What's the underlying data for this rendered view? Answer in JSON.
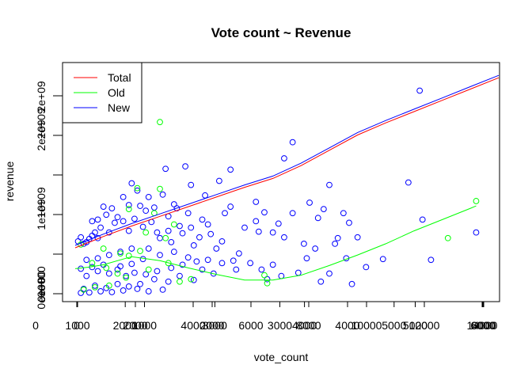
{
  "chart_data": {
    "type": "scatter",
    "title": "Vote count ~ Revenue",
    "xlabel": "vote_count",
    "ylabel": "revenue",
    "xlim": [
      0,
      15000
    ],
    "ylim": [
      0,
      2800000000
    ],
    "x_tick_labels_a": [
      "1000",
      "2000",
      "4000",
      "6000",
      "8000",
      "10000",
      "12000",
      "14000"
    ],
    "x_tick_labels_b": [
      "0",
      "2000",
      "3000",
      "4000",
      "5000",
      "6000"
    ],
    "x_tick_labels_c": [
      "0",
      "1000",
      "2000",
      "3000",
      "4000",
      "5000",
      "6000"
    ],
    "y_tick_labels_a": [
      "0e+00",
      "1e+09",
      "2e+09"
    ],
    "y_tick_labels_b": [
      "0e+00",
      "1e+09",
      "2e+09"
    ],
    "y_tick_labels_c": [
      "0e+00",
      "2e+09"
    ],
    "legend": {
      "position": "top-left",
      "entries": [
        {
          "label": "Total",
          "color": "#ff0000"
        },
        {
          "label": "Old",
          "color": "#00ff00"
        },
        {
          "label": "New",
          "color": "#0000ff"
        }
      ]
    },
    "colors": {
      "old": "#00ff00",
      "new": "#0000ff"
    },
    "series": [
      {
        "color": "#0000ff",
        "points": [
          [
            12200,
            2520000000
          ],
          [
            7700,
            1880000000
          ],
          [
            7400,
            1680000000
          ],
          [
            9000,
            1350000000
          ],
          [
            11800,
            1380000000
          ],
          [
            12300,
            920000000
          ],
          [
            14200,
            760000000
          ],
          [
            10900,
            430000000
          ],
          [
            10000,
            700000000
          ],
          [
            9300,
            690000000
          ],
          [
            9600,
            440000000
          ],
          [
            9200,
            620000000
          ],
          [
            9500,
            1000000000
          ],
          [
            9700,
            880000000
          ],
          [
            8800,
            1050000000
          ],
          [
            8300,
            1130000000
          ],
          [
            8600,
            940000000
          ],
          [
            8500,
            560000000
          ],
          [
            8100,
            620000000
          ],
          [
            8200,
            440000000
          ],
          [
            8700,
            150000000
          ],
          [
            9000,
            250000000
          ],
          [
            9800,
            120000000
          ],
          [
            7400,
            700000000
          ],
          [
            7200,
            870000000
          ],
          [
            7700,
            1000000000
          ],
          [
            7000,
            760000000
          ],
          [
            7000,
            360000000
          ],
          [
            6400,
            900000000
          ],
          [
            6500,
            770000000
          ],
          [
            6700,
            1010000000
          ],
          [
            6400,
            1140000000
          ],
          [
            5500,
            1080000000
          ],
          [
            6000,
            820000000
          ],
          [
            5800,
            500000000
          ],
          [
            5600,
            410000000
          ],
          [
            5200,
            650000000
          ],
          [
            5000,
            560000000
          ],
          [
            4800,
            740000000
          ],
          [
            4500,
            920000000
          ],
          [
            4700,
            860000000
          ],
          [
            4400,
            700000000
          ],
          [
            4200,
            600000000
          ],
          [
            4000,
            1000000000
          ],
          [
            3600,
            1060000000
          ],
          [
            3300,
            960000000
          ],
          [
            3100,
            1230000000
          ],
          [
            2800,
            1070000000
          ],
          [
            4600,
            1220000000
          ],
          [
            4100,
            1350000000
          ],
          [
            5100,
            1400000000
          ],
          [
            5500,
            1540000000
          ],
          [
            5300,
            1000000000
          ],
          [
            3800,
            750000000
          ],
          [
            3400,
            640000000
          ],
          [
            3000,
            690000000
          ],
          [
            2700,
            890000000
          ],
          [
            2900,
            760000000
          ],
          [
            2500,
            1030000000
          ],
          [
            2300,
            1090000000
          ],
          [
            2100,
            930000000
          ],
          [
            1900,
            780000000
          ],
          [
            2600,
            1200000000
          ],
          [
            3500,
            1110000000
          ],
          [
            2200,
            1280000000
          ],
          [
            2000,
            1370000000
          ],
          [
            3900,
            1580000000
          ],
          [
            3200,
            1550000000
          ],
          [
            4100,
            820000000
          ],
          [
            3700,
            840000000
          ],
          [
            3300,
            780000000
          ],
          [
            2400,
            830000000
          ],
          [
            1700,
            900000000
          ],
          [
            1500,
            950000000
          ],
          [
            1300,
            1060000000
          ],
          [
            1100,
            980000000
          ],
          [
            1400,
            880000000
          ],
          [
            1200,
            760000000
          ],
          [
            900,
            820000000
          ],
          [
            800,
            690000000
          ],
          [
            700,
            760000000
          ],
          [
            600,
            720000000
          ],
          [
            500,
            680000000
          ],
          [
            1700,
            1200000000
          ],
          [
            1900,
            1100000000
          ],
          [
            1000,
            1080000000
          ],
          [
            800,
            920000000
          ],
          [
            600,
            900000000
          ],
          [
            400,
            640000000
          ],
          [
            300,
            620000000
          ],
          [
            200,
            700000000
          ],
          [
            100,
            650000000
          ],
          [
            2600,
            560000000
          ],
          [
            3000,
            480000000
          ],
          [
            3500,
            520000000
          ],
          [
            4000,
            450000000
          ],
          [
            4300,
            400000000
          ],
          [
            4700,
            420000000
          ],
          [
            5200,
            380000000
          ],
          [
            5700,
            300000000
          ],
          [
            6200,
            380000000
          ],
          [
            6600,
            300000000
          ],
          [
            3800,
            360000000
          ],
          [
            3400,
            320000000
          ],
          [
            2900,
            280000000
          ],
          [
            2500,
            240000000
          ],
          [
            2100,
            260000000
          ],
          [
            1800,
            220000000
          ],
          [
            1500,
            300000000
          ],
          [
            1200,
            250000000
          ],
          [
            800,
            280000000
          ],
          [
            400,
            220000000
          ],
          [
            4900,
            250000000
          ],
          [
            4500,
            300000000
          ],
          [
            4200,
            170000000
          ],
          [
            3700,
            220000000
          ],
          [
            3300,
            150000000
          ],
          [
            2800,
            180000000
          ],
          [
            2300,
            120000000
          ],
          [
            1900,
            90000000
          ],
          [
            1500,
            120000000
          ],
          [
            1100,
            70000000
          ],
          [
            700,
            100000000
          ],
          [
            300,
            60000000
          ],
          [
            3100,
            50000000
          ],
          [
            2600,
            30000000
          ],
          [
            2200,
            60000000
          ],
          [
            1700,
            40000000
          ],
          [
            1300,
            20000000
          ],
          [
            900,
            30000000
          ],
          [
            500,
            15000000
          ],
          [
            200,
            10000000
          ],
          [
            6800,
            180000000
          ],
          [
            7300,
            220000000
          ],
          [
            7900,
            260000000
          ],
          [
            10300,
            330000000
          ],
          [
            12600,
            420000000
          ],
          [
            2000,
            560000000
          ],
          [
            1600,
            520000000
          ],
          [
            1200,
            480000000
          ],
          [
            800,
            440000000
          ],
          [
            400,
            420000000
          ],
          [
            2400,
            430000000
          ],
          [
            2000,
            370000000
          ],
          [
            1600,
            340000000
          ],
          [
            1000,
            360000000
          ],
          [
            600,
            330000000
          ],
          [
            200,
            310000000
          ]
        ]
      },
      {
        "color": "#00ff00",
        "points": [
          [
            3000,
            2130000000
          ],
          [
            2200,
            1310000000
          ],
          [
            3000,
            1300000000
          ],
          [
            2800,
            1000000000
          ],
          [
            1900,
            1050000000
          ],
          [
            3500,
            860000000
          ],
          [
            2500,
            760000000
          ],
          [
            3200,
            690000000
          ],
          [
            200,
            610000000
          ],
          [
            1000,
            560000000
          ],
          [
            1600,
            500000000
          ],
          [
            1900,
            470000000
          ],
          [
            2300,
            530000000
          ],
          [
            14200,
            1150000000
          ],
          [
            13200,
            690000000
          ],
          [
            6700,
            230000000
          ],
          [
            6800,
            130000000
          ],
          [
            4100,
            180000000
          ],
          [
            3700,
            150000000
          ],
          [
            300,
            50000000
          ],
          [
            700,
            80000000
          ],
          [
            1200,
            100000000
          ],
          [
            1500,
            250000000
          ],
          [
            1100,
            320000000
          ],
          [
            600,
            380000000
          ],
          [
            2600,
            300000000
          ],
          [
            1800,
            200000000
          ],
          [
            3300,
            380000000
          ]
        ]
      }
    ],
    "smoothers": [
      {
        "name": "Total",
        "color": "#ff0000",
        "x": [
          0,
          1000,
          2000,
          3000,
          4000,
          5000,
          6000,
          7000,
          8000,
          9000,
          10000,
          11000,
          12000,
          13000,
          14000,
          15000
        ],
        "y": [
          570000000,
          710000000,
          840000000,
          960000000,
          1080000000,
          1200000000,
          1320000000,
          1430000000,
          1590000000,
          1780000000,
          1970000000,
          2120000000,
          2260000000,
          2400000000,
          2540000000,
          2680000000
        ]
      },
      {
        "name": "Old",
        "color": "#00ff00",
        "x": [
          0,
          500,
          1000,
          2000,
          3000,
          4000,
          5000,
          6000,
          7000,
          8000,
          9000,
          10000,
          11000,
          12000,
          13000,
          14000,
          14200
        ],
        "y": [
          310000000,
          330000000,
          360000000,
          460000000,
          410000000,
          320000000,
          240000000,
          170000000,
          170000000,
          230000000,
          350000000,
          480000000,
          620000000,
          780000000,
          920000000,
          1060000000,
          1090000000
        ]
      },
      {
        "name": "New",
        "color": "#0000ff",
        "x": [
          0,
          1000,
          2000,
          3000,
          4000,
          5000,
          6000,
          7000,
          8000,
          9000,
          10000,
          11000,
          12000,
          13000,
          14000,
          15000
        ],
        "y": [
          600000000,
          740000000,
          870000000,
          990000000,
          1110000000,
          1230000000,
          1350000000,
          1460000000,
          1620000000,
          1810000000,
          2000000000,
          2150000000,
          2290000000,
          2430000000,
          2570000000,
          2710000000
        ]
      }
    ]
  }
}
